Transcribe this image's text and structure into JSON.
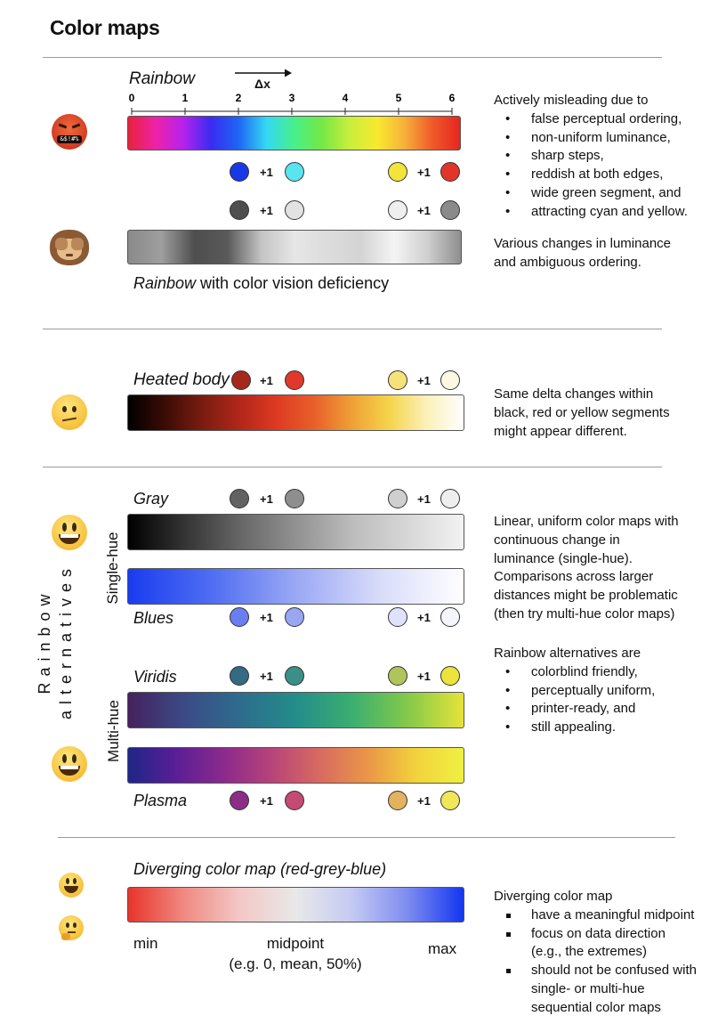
{
  "title": "Color maps",
  "rainbow": {
    "label": "Rainbow",
    "delta_label": "Δx",
    "ticks": [
      "0",
      "1",
      "2",
      "3",
      "4",
      "5",
      "6"
    ],
    "gradient": [
      "#e8223a",
      "#ee22a8",
      "#b522ee",
      "#3a2bf0",
      "#1e66f4",
      "#34d8f5",
      "#46f08a",
      "#74e845",
      "#c8ee3c",
      "#f7ea2e",
      "#f7b03a",
      "#ef5a2a",
      "#e6261f"
    ],
    "cvd_gradient": [
      "#8a8a8a",
      "#9e9e9e",
      "#4e4e4e",
      "#5a5a5a",
      "#c4c4c4",
      "#e6e6e6",
      "#dcdcdc",
      "#d4d4d4",
      "#f4f4f4",
      "#cfcfcf",
      "#8e8e8e"
    ],
    "pairs_top": {
      "a": "#1838e8",
      "b": "#5ae4f0",
      "c": "#f2e43a",
      "d": "#e2352a"
    },
    "pairs_bottom": {
      "a": "#4e4e4e",
      "b": "#e2e2e2",
      "c": "#efefef",
      "d": "#8a8a8a"
    },
    "plus": "+1",
    "cvd_caption_italic": "Rainbow",
    "cvd_caption_rest": " with color vision deficiency",
    "note_intro": "Actively misleading due to",
    "note_items": [
      "false perceptual ordering,",
      "non-uniform luminance,",
      "sharp steps,",
      "reddish at both edges,",
      "wide green segment, and",
      "attracting cyan and yellow."
    ],
    "cvd_note": [
      "Various changes in luminance",
      "and ambiguous ordering."
    ]
  },
  "heated": {
    "label": "Heated body",
    "gradient": [
      "#000000",
      "#3c0c06",
      "#7a1c10",
      "#b2261a",
      "#de3a22",
      "#e8602a",
      "#efa036",
      "#f5d44a",
      "#fbf0b8",
      "#ffffff"
    ],
    "pair": {
      "a": "#a5281c",
      "b": "#e0392b",
      "c": "#f7e27a",
      "d": "#fdf8e2"
    },
    "plus": "+1",
    "note": [
      "Same delta changes within",
      "black, red or yellow segments",
      "might appear different."
    ]
  },
  "alternatives": {
    "group_label_line1": "Rainbow",
    "group_label_line2": "alternatives",
    "single_hue_label": "Single-hue",
    "multi_hue_label": "Multi-hue",
    "gray": {
      "label": "Gray",
      "gradient": [
        "#000000",
        "#666666",
        "#bcbcbc",
        "#f2f2f2"
      ],
      "pair": {
        "a": "#626262",
        "b": "#8e8e8e",
        "c": "#cfcfcf",
        "d": "#eeeeee"
      }
    },
    "blues": {
      "label": "Blues",
      "gradient": [
        "#1a3cf0",
        "#4f6ef2",
        "#9aa8f4",
        "#d8dcfa",
        "#ffffff"
      ],
      "pair": {
        "a": "#6a7ef2",
        "b": "#98a6f4",
        "c": "#dfe2fb",
        "d": "#f4f5fd"
      }
    },
    "viridis": {
      "label": "Viridis",
      "gradient": [
        "#45215e",
        "#3b4a86",
        "#2e6c8c",
        "#238d8a",
        "#3bae70",
        "#84c94a",
        "#e6e33a"
      ],
      "pair": {
        "a": "#356a84",
        "b": "#3a8f88",
        "c": "#b0c45c",
        "d": "#ece33c"
      }
    },
    "plasma": {
      "label": "Plasma",
      "gradient": [
        "#1f2688",
        "#5a1e95",
        "#8b2a8c",
        "#b74479",
        "#d86a60",
        "#ea9647",
        "#f2d23c",
        "#f0f042"
      ],
      "pair": {
        "a": "#8a2e86",
        "b": "#c54a74",
        "c": "#e3b25e",
        "d": "#f0e65a"
      }
    },
    "plus": "+1",
    "single_note": [
      "Linear, uniform color maps with",
      "continuous change in",
      "luminance (single-hue).",
      "Comparisons across larger",
      "distances might be problematic",
      "(then try multi-hue color maps)"
    ],
    "alt_note_intro": "Rainbow alternatives are",
    "alt_note_items": [
      "colorblind friendly,",
      "perceptually uniform,",
      "printer-ready, and",
      "still appealing."
    ]
  },
  "diverging": {
    "label": "Diverging color map (red-grey-blue)",
    "gradient": [
      "#e8342a",
      "#ef8a82",
      "#f2c8c6",
      "#e8e8e8",
      "#c4caf3",
      "#7e8cf0",
      "#1436f0"
    ],
    "min_label": "min",
    "mid_label": "midpoint",
    "mid_sub": "(e.g. 0, mean, 50%)",
    "max_label": "max",
    "note_intro": "Diverging color map",
    "note_items": [
      "have a meaningful midpoint",
      "focus on data direction",
      "(e.g., the extremes)",
      "should not be confused with",
      "single- or multi-hue",
      "sequential color maps"
    ]
  }
}
